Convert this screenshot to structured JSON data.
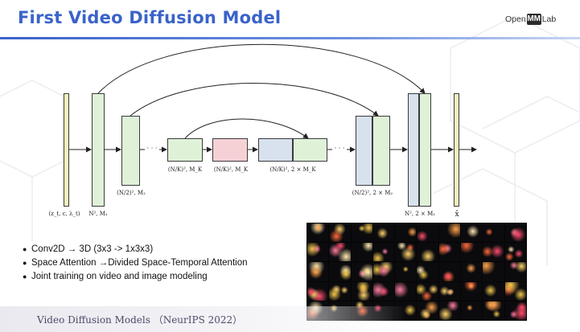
{
  "title": "First Video Diffusion Model",
  "logo": {
    "pre": "Open",
    "mark": "MM",
    "post": "Lab"
  },
  "diagram": {
    "labels": {
      "input": "(z_t, c, λ_t)",
      "n2m1_left": "N², M₁",
      "n2m2_left": "(N/2)², M₂",
      "nkmk_a": "(N/K)², M_K",
      "nkmk_b": "(N/K)², M_K",
      "nk2mk": "(N/K)², 2 × M_K",
      "n2m2_right": "(N/2)², 2 × M₂",
      "n2m1_right": "N², 2 × M₁",
      "output": "x̂"
    },
    "ellipsis": "· · ·"
  },
  "bullets": [
    {
      "text": "Conv2D → 3D   (3x3 -> 1x3x3)"
    },
    {
      "text": "Space Attention →Divided Space-Temporal Attention"
    },
    {
      "text": "Joint training on video and image modeling"
    }
  ],
  "footer": "Video Diffusion Models （NeurIPS 2022）",
  "colors": {
    "title": "#3a63c9",
    "green_block": "#dff2d8",
    "yellow_block": "#f6f1bd",
    "pink_block": "#f5d1d6",
    "blue_block": "#d8e1ee"
  }
}
